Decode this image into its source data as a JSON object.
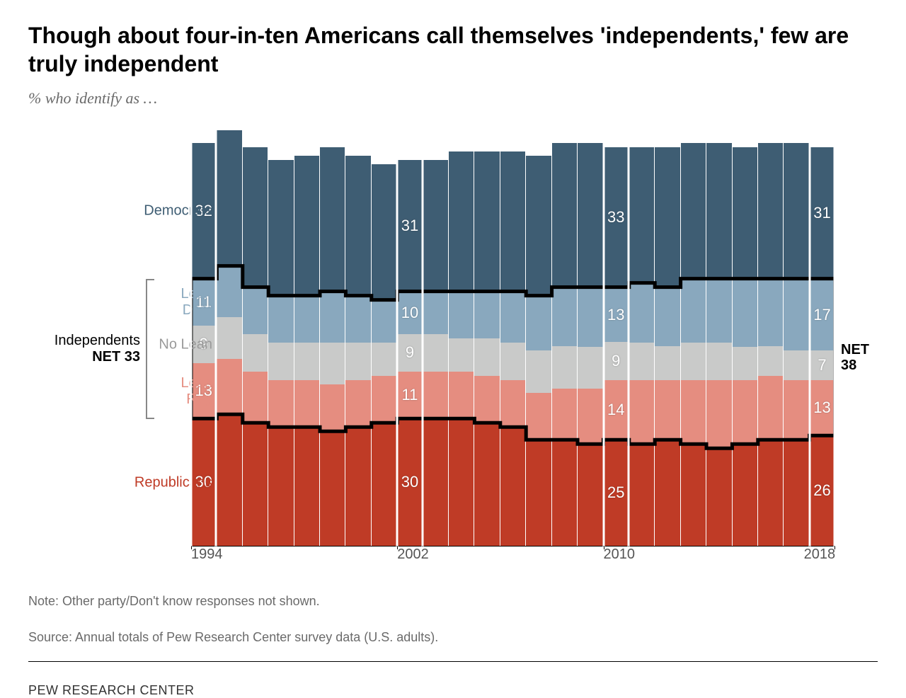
{
  "title": "Though about four-in-ten Americans call themselves 'independents,' few are truly independent",
  "subtitle": "% who identify as …",
  "note1": "Note: Other party/Don't know responses not shown.",
  "note2": "Source: Annual totals of Pew Research Center survey data (U.S. adults).",
  "brand": "PEW RESEARCH CENTER",
  "chart": {
    "type": "stacked-bar",
    "max_scale": 100,
    "colors": {
      "democrats": "#3e5d73",
      "lean_dem": "#89a8be",
      "no_lean": "#c9cac9",
      "lean_rep": "#e58d80",
      "republicans": "#bf3b26",
      "outline": "#000000",
      "background": "#ffffff"
    },
    "category_labels": {
      "democrats": "Democrats",
      "lean_dem": "Lean\nDem",
      "no_lean": "No Lean",
      "lean_rep": "Lean\nRep",
      "republicans": "Republicans"
    },
    "left_net_label": "Independents",
    "left_net_value": "NET 33",
    "right_net_label": "NET",
    "right_net_value": "38",
    "years": [
      1994,
      1995,
      1996,
      1997,
      1998,
      1999,
      2000,
      2001,
      2002,
      2003,
      2004,
      2005,
      2006,
      2007,
      2008,
      2009,
      2010,
      2011,
      2012,
      2013,
      2014,
      2015,
      2016,
      2017,
      2018
    ],
    "x_ticks": [
      1994,
      2002,
      2010,
      2018
    ],
    "highlight_years": [
      1994,
      2002,
      2010,
      2018
    ],
    "series": [
      {
        "year": 1994,
        "rep": 30,
        "lean_rep": 13,
        "no_lean": 9,
        "lean_dem": 11,
        "dem": 32,
        "labels": true
      },
      {
        "year": 1995,
        "rep": 31,
        "lean_rep": 13,
        "no_lean": 10,
        "lean_dem": 12,
        "dem": 32
      },
      {
        "year": 1996,
        "rep": 29,
        "lean_rep": 12,
        "no_lean": 9,
        "lean_dem": 11,
        "dem": 33
      },
      {
        "year": 1997,
        "rep": 28,
        "lean_rep": 11,
        "no_lean": 9,
        "lean_dem": 11,
        "dem": 32
      },
      {
        "year": 1998,
        "rep": 28,
        "lean_rep": 11,
        "no_lean": 9,
        "lean_dem": 11,
        "dem": 33
      },
      {
        "year": 1999,
        "rep": 27,
        "lean_rep": 11,
        "no_lean": 10,
        "lean_dem": 12,
        "dem": 34
      },
      {
        "year": 2000,
        "rep": 28,
        "lean_rep": 11,
        "no_lean": 9,
        "lean_dem": 11,
        "dem": 33
      },
      {
        "year": 2001,
        "rep": 29,
        "lean_rep": 11,
        "no_lean": 8,
        "lean_dem": 10,
        "dem": 32
      },
      {
        "year": 2002,
        "rep": 30,
        "lean_rep": 11,
        "no_lean": 9,
        "lean_dem": 10,
        "dem": 31,
        "labels": true
      },
      {
        "year": 2003,
        "rep": 30,
        "lean_rep": 11,
        "no_lean": 9,
        "lean_dem": 10,
        "dem": 31
      },
      {
        "year": 2004,
        "rep": 30,
        "lean_rep": 11,
        "no_lean": 8,
        "lean_dem": 11,
        "dem": 33
      },
      {
        "year": 2005,
        "rep": 29,
        "lean_rep": 11,
        "no_lean": 9,
        "lean_dem": 11,
        "dem": 33
      },
      {
        "year": 2006,
        "rep": 28,
        "lean_rep": 11,
        "no_lean": 9,
        "lean_dem": 12,
        "dem": 33
      },
      {
        "year": 2007,
        "rep": 25,
        "lean_rep": 11,
        "no_lean": 10,
        "lean_dem": 13,
        "dem": 33
      },
      {
        "year": 2008,
        "rep": 25,
        "lean_rep": 12,
        "no_lean": 10,
        "lean_dem": 14,
        "dem": 34
      },
      {
        "year": 2009,
        "rep": 24,
        "lean_rep": 13,
        "no_lean": 10,
        "lean_dem": 14,
        "dem": 34
      },
      {
        "year": 2010,
        "rep": 25,
        "lean_rep": 14,
        "no_lean": 9,
        "lean_dem": 13,
        "dem": 33,
        "labels": true
      },
      {
        "year": 2011,
        "rep": 24,
        "lean_rep": 15,
        "no_lean": 9,
        "lean_dem": 14,
        "dem": 32
      },
      {
        "year": 2012,
        "rep": 25,
        "lean_rep": 14,
        "no_lean": 8,
        "lean_dem": 14,
        "dem": 33
      },
      {
        "year": 2013,
        "rep": 24,
        "lean_rep": 15,
        "no_lean": 9,
        "lean_dem": 15,
        "dem": 32
      },
      {
        "year": 2014,
        "rep": 23,
        "lean_rep": 16,
        "no_lean": 9,
        "lean_dem": 15,
        "dem": 32
      },
      {
        "year": 2015,
        "rep": 24,
        "lean_rep": 15,
        "no_lean": 8,
        "lean_dem": 16,
        "dem": 31
      },
      {
        "year": 2016,
        "rep": 25,
        "lean_rep": 15,
        "no_lean": 7,
        "lean_dem": 16,
        "dem": 32
      },
      {
        "year": 2017,
        "rep": 25,
        "lean_rep": 14,
        "no_lean": 7,
        "lean_dem": 17,
        "dem": 32
      },
      {
        "year": 2018,
        "rep": 26,
        "lean_rep": 13,
        "no_lean": 7,
        "lean_dem": 17,
        "dem": 31,
        "labels": true
      }
    ],
    "label_fontsize": 20,
    "category_label_colors": {
      "democrats": "#3e5d73",
      "lean_dem": "#89a8be",
      "no_lean": "#9a9a9a",
      "lean_rep": "#e58d80",
      "republicans": "#bf3b26"
    }
  }
}
